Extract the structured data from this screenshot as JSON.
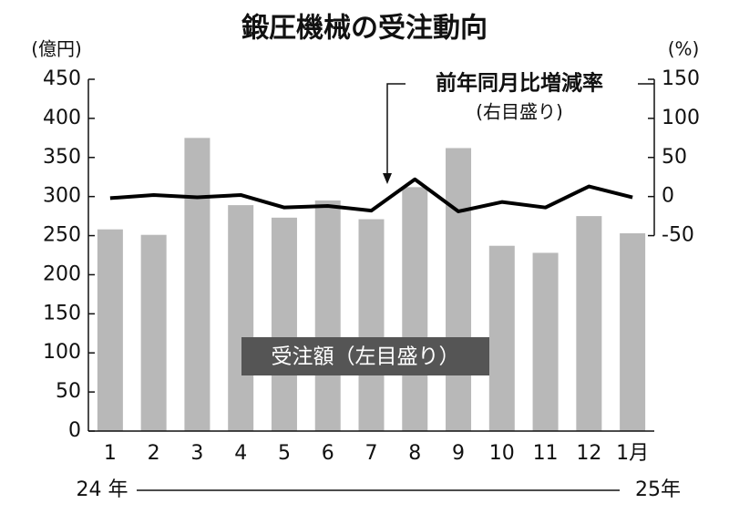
{
  "chart_data": {
    "type": "bar",
    "title": "鍛圧機械の受注動向",
    "y_label": "(億円)",
    "y2_label": "(%)",
    "line_note": "(右目盛り)",
    "categories": [
      "1",
      "2",
      "3",
      "4",
      "5",
      "6",
      "7",
      "8",
      "9",
      "10",
      "11",
      "12",
      "1月"
    ],
    "year_labels": [
      "24 年",
      "25年"
    ],
    "series": [
      {
        "name": "受注額（左目盛り）",
        "type": "bar",
        "color": "#b8b8b8",
        "values": [
          258,
          251,
          375,
          289,
          273,
          295,
          271,
          312,
          362,
          237,
          228,
          275,
          253
        ]
      },
      {
        "name": "前年同月比増減率",
        "type": "line",
        "axis": "y2",
        "color": "#000000",
        "values": [
          -2,
          2,
          -1,
          2,
          -14,
          -12,
          -18,
          22,
          -19,
          -7,
          -14,
          13,
          -1
        ]
      }
    ],
    "ylim": [
      0,
      450
    ],
    "yticks": [
      0,
      50,
      100,
      150,
      200,
      250,
      300,
      350,
      400,
      450
    ],
    "y2lim": [
      -300,
      150
    ],
    "y2ticks": [
      -50,
      0,
      50,
      100,
      150
    ]
  }
}
